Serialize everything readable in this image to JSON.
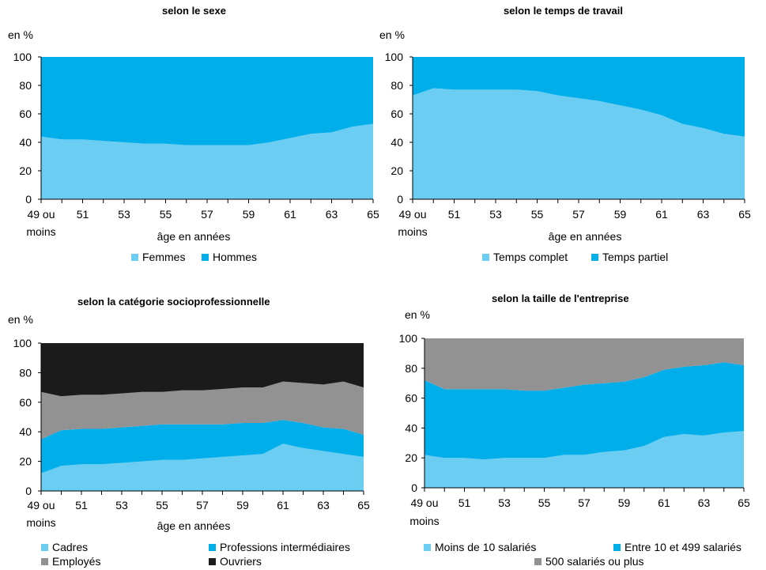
{
  "chart_data": [
    {
      "type": "area",
      "stacked": true,
      "title": "selon le sexe",
      "ylabel": "en %",
      "xlabel": "âge en années",
      "ylim": [
        0,
        100
      ],
      "yticks": [
        "0",
        "20",
        "40",
        "60",
        "80",
        "100"
      ],
      "xtick_labels": [
        "49 ou",
        "51",
        "53",
        "55",
        "57",
        "59",
        "61",
        "63",
        "65"
      ],
      "xtick_sub": "moins",
      "x": [
        49,
        50,
        51,
        52,
        53,
        54,
        55,
        56,
        57,
        58,
        59,
        60,
        61,
        62,
        63,
        64,
        65
      ],
      "series": [
        {
          "name": "Femmes",
          "color": "#6ccdf2",
          "values": [
            44,
            42,
            42,
            41,
            40,
            39,
            39,
            38,
            38,
            38,
            38,
            40,
            43,
            46,
            47,
            51,
            53
          ]
        },
        {
          "name": "Hommes",
          "color": "#00aeea",
          "values": [
            56,
            58,
            58,
            59,
            60,
            61,
            61,
            62,
            62,
            62,
            62,
            60,
            57,
            54,
            53,
            49,
            47
          ]
        }
      ],
      "legend": "bottom"
    },
    {
      "type": "area",
      "stacked": true,
      "title": "selon le temps de travail",
      "ylabel": "en %",
      "xlabel": "âge en années",
      "ylim": [
        0,
        100
      ],
      "yticks": [
        "0",
        "20",
        "40",
        "60",
        "80",
        "100"
      ],
      "xtick_labels": [
        "49 ou",
        "51",
        "53",
        "55",
        "57",
        "59",
        "61",
        "63",
        "65"
      ],
      "xtick_sub": "moins",
      "x": [
        49,
        50,
        51,
        52,
        53,
        54,
        55,
        56,
        57,
        58,
        59,
        60,
        61,
        62,
        63,
        64,
        65
      ],
      "series": [
        {
          "name": "Temps complet",
          "color": "#6ccdf2",
          "values": [
            73,
            78,
            77,
            77,
            77,
            77,
            76,
            73,
            71,
            69,
            66,
            63,
            59,
            53,
            50,
            46,
            44
          ]
        },
        {
          "name": "Temps partiel",
          "color": "#00aeea",
          "values": [
            27,
            22,
            23,
            23,
            23,
            23,
            24,
            27,
            29,
            31,
            34,
            37,
            41,
            47,
            50,
            54,
            56
          ]
        }
      ],
      "legend": "bottom"
    },
    {
      "type": "area",
      "stacked": true,
      "title": "selon la catégorie socioprofessionnelle",
      "ylabel": "en %",
      "xlabel": "âge en années",
      "ylim": [
        0,
        100
      ],
      "yticks": [
        "0",
        "20",
        "40",
        "60",
        "80",
        "100"
      ],
      "xtick_labels": [
        "49 ou",
        "51",
        "53",
        "55",
        "57",
        "59",
        "61",
        "63",
        "65"
      ],
      "xtick_sub": "moins",
      "x": [
        49,
        50,
        51,
        52,
        53,
        54,
        55,
        56,
        57,
        58,
        59,
        60,
        61,
        62,
        63,
        64,
        65
      ],
      "series": [
        {
          "name": "Cadres",
          "color": "#6ccdf2",
          "values": [
            12,
            17,
            18,
            18,
            19,
            20,
            21,
            21,
            22,
            23,
            24,
            25,
            32,
            29,
            27,
            25,
            23
          ]
        },
        {
          "name": "Professions intermédiaires",
          "color": "#00aeea",
          "values": [
            23,
            24,
            24,
            24,
            24,
            24,
            24,
            24,
            23,
            22,
            22,
            21,
            16,
            17,
            16,
            17,
            15
          ]
        },
        {
          "name": "Employés",
          "color": "#929292",
          "values": [
            32,
            23,
            23,
            23,
            23,
            23,
            22,
            23,
            23,
            24,
            24,
            24,
            26,
            27,
            29,
            32,
            32
          ]
        },
        {
          "name": "Ouvriers",
          "color": "#1b1b1b",
          "values": [
            33,
            36,
            35,
            35,
            34,
            33,
            33,
            32,
            32,
            31,
            30,
            30,
            26,
            27,
            28,
            26,
            30
          ]
        }
      ],
      "legend": "bottom"
    },
    {
      "type": "area",
      "stacked": true,
      "title": "selon la taille de l'entreprise",
      "ylabel": "en %",
      "xlabel": "",
      "ylim": [
        0,
        100
      ],
      "yticks": [
        "0",
        "20",
        "40",
        "60",
        "80",
        "100"
      ],
      "xtick_labels": [
        "49 ou",
        "51",
        "53",
        "55",
        "57",
        "59",
        "61",
        "63",
        "65"
      ],
      "xtick_sub": "moins",
      "x": [
        49,
        50,
        51,
        52,
        53,
        54,
        55,
        56,
        57,
        58,
        59,
        60,
        61,
        62,
        63,
        64,
        65
      ],
      "series": [
        {
          "name": "Moins de 10 salariés",
          "color": "#6ccdf2",
          "values": [
            22,
            20,
            20,
            19,
            20,
            20,
            20,
            22,
            22,
            24,
            25,
            28,
            34,
            36,
            35,
            37,
            38
          ]
        },
        {
          "name": "Entre 10 et 499 salariés",
          "color": "#00aeea",
          "values": [
            50,
            46,
            46,
            47,
            46,
            45,
            45,
            45,
            47,
            46,
            46,
            46,
            45,
            45,
            47,
            47,
            44
          ]
        },
        {
          "name": "500 salariés ou plus",
          "color": "#929292",
          "values": [
            28,
            34,
            34,
            34,
            34,
            35,
            35,
            33,
            31,
            30,
            29,
            26,
            21,
            19,
            18,
            16,
            18
          ]
        }
      ],
      "legend": "bottom"
    }
  ]
}
